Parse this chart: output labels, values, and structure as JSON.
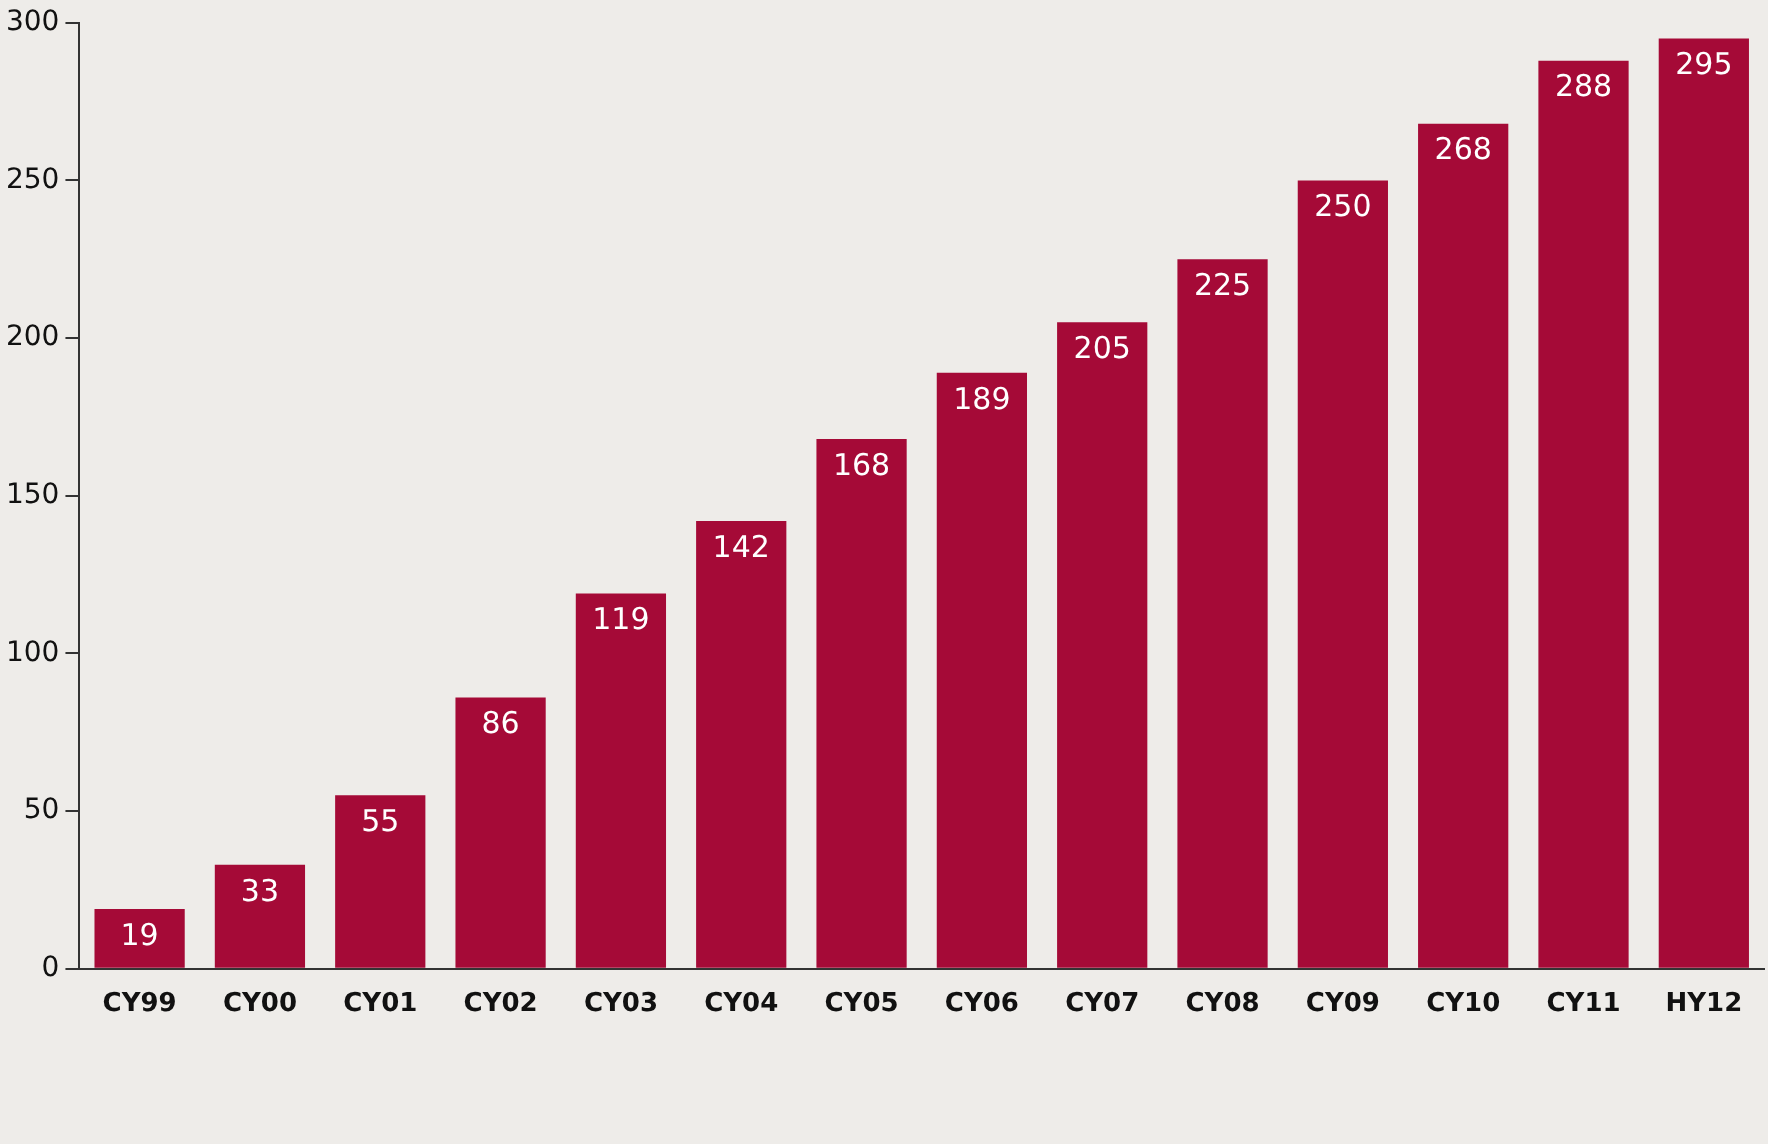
{
  "chart_data": {
    "type": "bar",
    "categories": [
      "CY99",
      "CY00",
      "CY01",
      "CY02",
      "CY03",
      "CY04",
      "CY05",
      "CY06",
      "CY07",
      "CY08",
      "CY09",
      "CY10",
      "CY11",
      "HY12"
    ],
    "values": [
      19,
      33,
      55,
      86,
      119,
      142,
      168,
      189,
      205,
      225,
      250,
      268,
      288,
      295
    ],
    "color": "#a50a37",
    "ylim": [
      0,
      300
    ],
    "yticks": [
      0,
      50,
      100,
      150,
      200,
      250,
      300
    ],
    "grid": false,
    "legend": false,
    "data_labels": true
  }
}
